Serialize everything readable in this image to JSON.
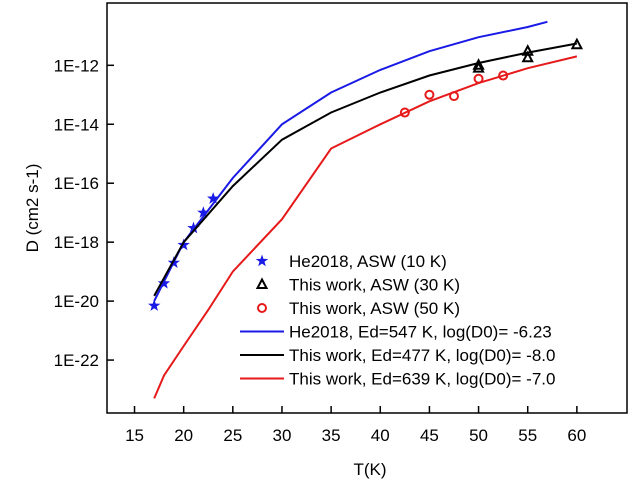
{
  "chart_data": {
    "type": "scatter",
    "x_label": "T(K)",
    "y_label": "D (cm2 s-1)",
    "log_y": true,
    "xlim": [
      12.2,
      65.1
    ],
    "ylim": [
      1.6e-24,
      1.3e-10
    ],
    "xticks": [
      15,
      20,
      25,
      30,
      35,
      40,
      45,
      50,
      55,
      60
    ],
    "yticks": [
      {
        "value": 1e-22,
        "label": "1E-22"
      },
      {
        "value": 1e-20,
        "label": "1E-20"
      },
      {
        "value": 1e-18,
        "label": "1E-18"
      },
      {
        "value": 1e-16,
        "label": "1E-16"
      },
      {
        "value": 1e-14,
        "label": "1E-14"
      },
      {
        "value": 1e-12,
        "label": "1E-12"
      }
    ],
    "series": [
      {
        "name": "He2018, ASW (10 K)",
        "color": "#1a1ae6",
        "marker": "star",
        "x": [
          17,
          18,
          19,
          20,
          21,
          22,
          23
        ],
        "values": [
          7e-21,
          4e-20,
          2e-19,
          8e-19,
          3e-18,
          1e-17,
          3e-17
        ]
      },
      {
        "name": "This work, ASW (30 K)",
        "color": "#000000",
        "marker": "triangle",
        "x": [
          50,
          50,
          55,
          55,
          60
        ],
        "values": [
          1e-12,
          8e-13,
          3e-12,
          1.8e-12,
          5e-12
        ]
      },
      {
        "name": "This work, ASW (50 K)",
        "color": "#e61a1a",
        "marker": "circle",
        "x": [
          42.5,
          45,
          47.5,
          50,
          52.5
        ],
        "values": [
          2.5e-14,
          1e-13,
          9e-14,
          3.5e-13,
          4.5e-13
        ]
      },
      {
        "name": "He2018,    Ed=547 K, log(D0)= -6.23",
        "color": "#1a1ae6",
        "marker": "line",
        "x": [
          17,
          20,
          25,
          30,
          35,
          40,
          45,
          50,
          55,
          57
        ],
        "values": [
          1e-20,
          1e-18,
          1.5e-16,
          1e-14,
          1.2e-13,
          7e-13,
          3e-12,
          9e-12,
          2e-11,
          3e-11
        ]
      },
      {
        "name": "This work,  Ed=477 K, log(D0)= -8.0",
        "color": "#000000",
        "marker": "line",
        "x": [
          17,
          20,
          25,
          30,
          35,
          40,
          45,
          50,
          55,
          60
        ],
        "values": [
          1.5e-20,
          1e-18,
          8e-17,
          3e-15,
          2.5e-14,
          1.2e-13,
          4.5e-13,
          1.2e-12,
          2.7e-12,
          5.5e-12
        ]
      },
      {
        "name": "This work,  Ed=639 K, log(D0)= -7.0",
        "color": "#e61a1a",
        "marker": "line",
        "x": [
          17,
          18,
          20,
          22.5,
          25,
          30,
          35,
          40,
          45,
          50,
          55,
          60
        ],
        "values": [
          5e-24,
          3e-23,
          3e-22,
          5e-21,
          1e-19,
          6e-18,
          1.5e-15,
          1e-14,
          6e-14,
          2.5e-13,
          8e-13,
          2e-12
        ]
      }
    ]
  }
}
